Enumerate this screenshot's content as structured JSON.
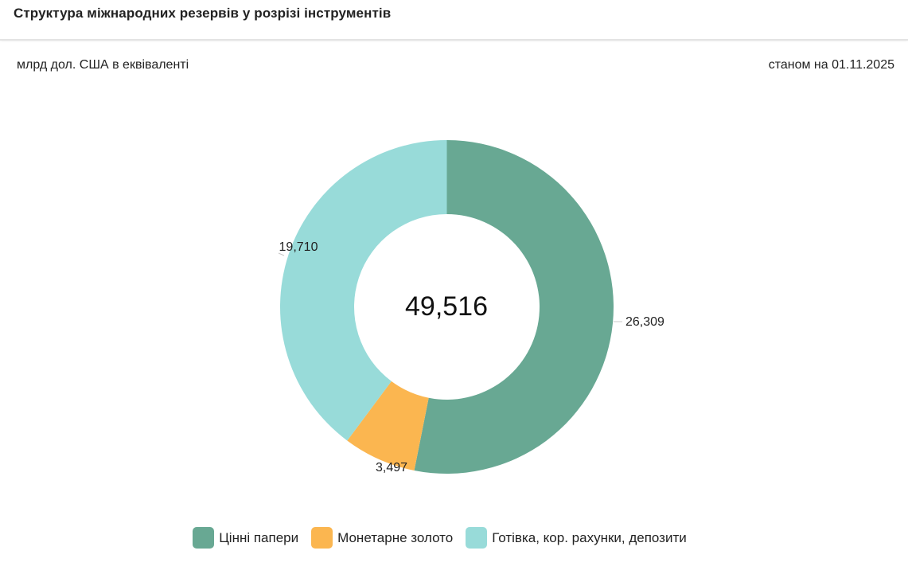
{
  "header": {
    "title": "Структура міжнародних резервів у розрізі інструментів"
  },
  "subheader": {
    "unit": "млрд дол. США в еквіваленті",
    "as_of": "станом на 01.11.2025"
  },
  "center_total": "49,516",
  "legend": [
    {
      "label": "Цінні папери",
      "color": "#68a893"
    },
    {
      "label": "Монетарне золото",
      "color": "#fbb650"
    },
    {
      "label": "Готівка, кор. рахунки, депозити",
      "color": "#98dbd9"
    }
  ],
  "slice_labels": [
    "26,309",
    "3,497",
    "19,710"
  ],
  "chart_data": {
    "type": "pie",
    "subtype": "donut",
    "title": "Структура міжнародних резервів у розрізі інструментів",
    "subtitle": "млрд дол. США в еквіваленті",
    "date": "станом на 01.11.2025",
    "categories": [
      "Цінні папери",
      "Монетарне золото",
      "Готівка, кор. рахунки, депозити"
    ],
    "values": [
      26.309,
      3.497,
      19.71
    ],
    "colors": [
      "#68a893",
      "#fbb650",
      "#98dbd9"
    ],
    "center_label": "49,516",
    "total": 49.516,
    "legend_position": "bottom",
    "start_angle_deg": 0,
    "direction": "clockwise"
  }
}
